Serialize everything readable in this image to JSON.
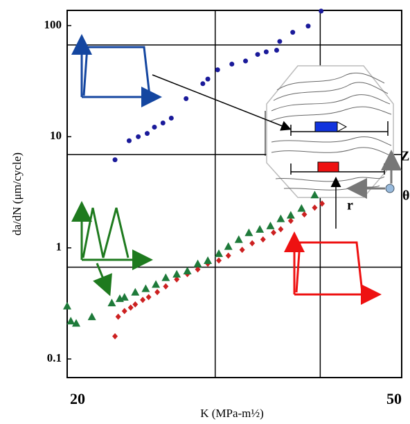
{
  "chart_data": {
    "type": "scatter",
    "x_label": "K (MPa-m½)",
    "y_label": "da/dN (μm/cycle)",
    "xlog": true,
    "ylog": true,
    "xlim": [
      20,
      50
    ],
    "ylim": [
      0.068,
      137
    ],
    "xticks": [
      20,
      50
    ],
    "yticks": [
      0.1,
      1,
      10,
      100
    ],
    "xgrid": [
      30,
      40
    ],
    "ygrid": [
      0.67,
      6.9,
      67
    ],
    "series": [
      {
        "name": "Trapezoidal (top)",
        "color": "#1a1a9a",
        "marker": "circle",
        "x": [
          22.8,
          23.7,
          24.3,
          24.9,
          25.4,
          26.0,
          26.6,
          27.7,
          29.0,
          29.4,
          30.2,
          31.4,
          32.6,
          33.7,
          34.5,
          35.5,
          35.8,
          37.1,
          38.7,
          40.1
        ],
        "values": [
          6.2,
          9.2,
          10,
          10.7,
          12.2,
          13.3,
          14.7,
          22,
          30,
          33,
          40,
          45,
          48,
          55,
          58,
          60,
          72,
          87,
          99,
          135
        ]
      },
      {
        "name": "Trapezoidal (bottom)",
        "color": "#cc2020",
        "marker": "diamond",
        "x": [
          22.8,
          23.0,
          23.4,
          23.8,
          24.1,
          24.6,
          25.0,
          25.6,
          26.2,
          27.0,
          27.8,
          28.6,
          29.4,
          30.3,
          31.1,
          32.3,
          33.2,
          34.2,
          35.2,
          35.9,
          36.9,
          38.3,
          39.4,
          40.2
        ],
        "values": [
          0.16,
          0.24,
          0.27,
          0.29,
          0.31,
          0.34,
          0.36,
          0.4,
          0.45,
          0.52,
          0.58,
          0.64,
          0.72,
          0.77,
          0.85,
          0.96,
          1.1,
          1.19,
          1.37,
          1.47,
          1.75,
          2.0,
          2.3,
          2.5
        ]
      },
      {
        "name": "Triangular",
        "color": "#1e7a3a",
        "marker": "triangle",
        "x": [
          20,
          20.2,
          20.5,
          21.4,
          22.6,
          23.1,
          23.4,
          24.1,
          24.8,
          25.5,
          26.2,
          27.0,
          27.8,
          28.6,
          29.4,
          30.3,
          31.1,
          32.0,
          32.9,
          33.9,
          34.9,
          35.9,
          36.9,
          38.0,
          39.4
        ],
        "values": [
          0.3,
          0.22,
          0.21,
          0.24,
          0.32,
          0.35,
          0.36,
          0.4,
          0.43,
          0.47,
          0.54,
          0.58,
          0.62,
          0.72,
          0.77,
          0.89,
          1.03,
          1.19,
          1.37,
          1.47,
          1.58,
          1.83,
          1.97,
          2.27,
          3.0
        ]
      }
    ],
    "annotations": {
      "z": "Z",
      "r": "r",
      "theta": "θ"
    }
  }
}
